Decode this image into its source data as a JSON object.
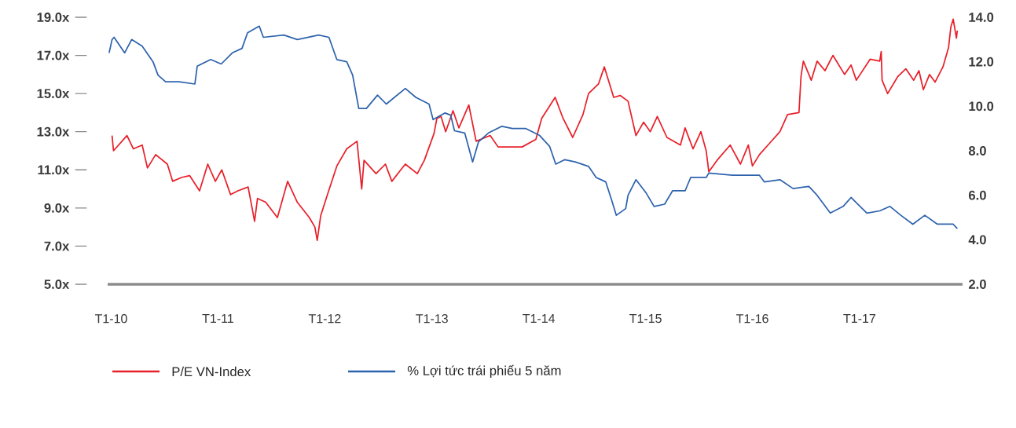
{
  "chart_data": {
    "type": "line",
    "xlim": [
      "2009-12-20",
      "2017-12-19"
    ],
    "xticks": [
      {
        "value": "2010-01-01",
        "label": "T1-10"
      },
      {
        "value": "2011-01-01",
        "label": "T1-11"
      },
      {
        "value": "2012-01-01",
        "label": "T1-12"
      },
      {
        "value": "2013-01-01",
        "label": "T1-13"
      },
      {
        "value": "2014-01-01",
        "label": "T1-14"
      },
      {
        "value": "2015-01-01",
        "label": "T1-15"
      },
      {
        "value": "2016-01-01",
        "label": "T1-16"
      },
      {
        "value": "2017-01-01",
        "label": "T1-17"
      }
    ],
    "ylim": [
      5,
      19
    ],
    "yticks": [
      {
        "value": 5,
        "label": "5.0x"
      },
      {
        "value": 7,
        "label": "7.0x"
      },
      {
        "value": 9,
        "label": "9.0x"
      },
      {
        "value": 11,
        "label": "11.0x"
      },
      {
        "value": 13,
        "label": "13.0x"
      },
      {
        "value": 15,
        "label": "15.0x"
      },
      {
        "value": 17,
        "label": "17.0x"
      },
      {
        "value": 19,
        "label": "19.0x"
      }
    ],
    "y2lim": [
      2,
      14
    ],
    "y2ticks": [
      {
        "value": 2,
        "label": "2.0"
      },
      {
        "value": 4,
        "label": "4.0"
      },
      {
        "value": 6,
        "label": "6.0"
      },
      {
        "value": 8,
        "label": "8.0"
      },
      {
        "value": 10,
        "label": "10.0"
      },
      {
        "value": 12,
        "label": "12.0"
      },
      {
        "value": 14,
        "label": "14.0"
      }
    ],
    "legend": "bottom",
    "series": [
      {
        "name": "P/E VN-Index",
        "color": "#e8202a",
        "x": [
          "2010-01-04",
          "2010-01-09",
          "2010-02-24",
          "2010-03-18",
          "2010-04-17",
          "2010-05-05",
          "2010-06-02",
          "2010-07-12",
          "2010-07-30",
          "2010-08-29",
          "2010-09-26",
          "2010-10-30",
          "2010-11-27",
          "2010-12-23",
          "2011-01-14",
          "2011-02-13",
          "2011-03-10",
          "2011-04-14",
          "2011-05-06",
          "2011-05-16",
          "2011-06-13",
          "2011-07-23",
          "2011-08-27",
          "2011-09-29",
          "2011-11-09",
          "2011-11-28",
          "2011-12-06",
          "2011-12-18",
          "2012-01-10",
          "2012-02-11",
          "2012-03-16",
          "2012-04-20",
          "2012-05-06",
          "2012-05-14",
          "2012-06-24",
          "2012-07-26",
          "2012-08-17",
          "2012-10-02",
          "2012-11-12",
          "2012-12-06",
          "2013-01-08",
          "2013-01-18",
          "2013-02-01",
          "2013-02-17",
          "2013-03-14",
          "2013-04-03",
          "2013-05-07",
          "2013-06-01",
          "2013-07-19",
          "2013-08-15",
          "2013-11-05",
          "2013-12-22",
          "2014-01-11",
          "2014-02-26",
          "2014-03-25",
          "2014-04-27",
          "2014-06-01",
          "2014-06-20",
          "2014-07-24",
          "2014-08-13",
          "2014-09-14",
          "2014-10-06",
          "2014-11-02",
          "2014-11-29",
          "2014-12-25",
          "2015-01-17",
          "2015-02-10",
          "2015-03-15",
          "2015-04-30",
          "2015-05-16",
          "2015-06-12",
          "2015-07-09",
          "2015-07-27",
          "2015-08-05",
          "2015-09-02",
          "2015-10-17",
          "2015-11-21",
          "2015-12-18",
          "2016-01-01",
          "2016-01-25",
          "2016-02-29",
          "2016-04-04",
          "2016-04-30",
          "2016-06-08",
          "2016-06-15",
          "2016-06-23",
          "2016-07-20",
          "2016-08-09",
          "2016-09-05",
          "2016-10-02",
          "2016-11-11",
          "2016-12-03",
          "2016-12-21",
          "2017-02-06",
          "2017-03-11",
          "2017-03-16",
          "2017-03-19",
          "2017-04-07",
          "2017-05-12",
          "2017-06-08",
          "2017-07-05",
          "2017-07-23",
          "2017-08-07",
          "2017-08-28",
          "2017-09-16",
          "2017-10-13",
          "2017-11-01",
          "2017-11-09",
          "2017-11-17",
          "2017-11-28",
          "2017-12-01"
        ],
        "values": [
          12.8,
          12.0,
          12.8,
          12.1,
          12.3,
          11.1,
          11.8,
          11.3,
          10.4,
          10.6,
          10.7,
          9.9,
          11.3,
          10.4,
          11.0,
          9.7,
          9.9,
          10.1,
          8.3,
          9.5,
          9.3,
          8.5,
          10.4,
          9.3,
          8.5,
          8.0,
          7.3,
          8.6,
          9.7,
          11.2,
          12.1,
          12.5,
          10.0,
          11.5,
          10.8,
          11.3,
          10.4,
          11.3,
          10.8,
          11.5,
          12.9,
          13.7,
          13.8,
          13.0,
          14.1,
          13.2,
          14.4,
          12.5,
          12.8,
          12.2,
          12.2,
          12.6,
          13.7,
          14.8,
          13.7,
          12.7,
          13.9,
          15.0,
          15.5,
          16.4,
          14.8,
          14.9,
          14.6,
          12.8,
          13.5,
          13.0,
          13.8,
          12.7,
          12.3,
          13.2,
          12.1,
          13.0,
          12.0,
          10.9,
          11.5,
          12.3,
          11.3,
          12.3,
          11.2,
          11.8,
          12.4,
          13.0,
          13.9,
          14.0,
          15.9,
          16.7,
          15.7,
          16.7,
          16.2,
          17.0,
          16.0,
          16.5,
          15.7,
          16.8,
          16.7,
          17.2,
          15.7,
          15.0,
          15.9,
          16.3,
          15.7,
          16.2,
          15.2,
          16.0,
          15.6,
          16.4,
          17.4,
          18.5,
          18.9,
          17.9,
          18.3
        ]
      },
      {
        "name": "% Lợi tức trái phiếu 5 năm",
        "color": "#2e63ad",
        "axis": "y2",
        "x": [
          "2009-12-25",
          "2010-01-04",
          "2010-01-11",
          "2010-02-16",
          "2010-03-12",
          "2010-04-17",
          "2010-05-24",
          "2010-06-10",
          "2010-07-06",
          "2010-08-21",
          "2010-10-14",
          "2010-10-22",
          "2010-12-07",
          "2011-01-12",
          "2011-02-19",
          "2011-03-24",
          "2011-04-12",
          "2011-05-22",
          "2011-06-05",
          "2011-08-14",
          "2011-09-29",
          "2011-12-11",
          "2012-01-15",
          "2012-02-11",
          "2012-03-16",
          "2012-04-05",
          "2012-04-26",
          "2012-05-22",
          "2012-06-29",
          "2012-07-29",
          "2012-10-02",
          "2012-11-07",
          "2012-12-22",
          "2013-01-05",
          "2013-02-15",
          "2013-03-06",
          "2013-03-19",
          "2013-04-23",
          "2013-05-20",
          "2013-06-09",
          "2013-07-13",
          "2013-08-28",
          "2013-10-03",
          "2013-11-18",
          "2014-01-03",
          "2014-02-07",
          "2014-02-28",
          "2014-03-31",
          "2014-05-05",
          "2014-06-20",
          "2014-07-16",
          "2014-08-18",
          "2014-09-09",
          "2014-09-23",
          "2014-10-25",
          "2014-11-02",
          "2014-11-29",
          "2015-01-03",
          "2015-01-30",
          "2015-03-07",
          "2015-04-03",
          "2015-05-16",
          "2015-06-04",
          "2015-07-27",
          "2015-08-05",
          "2015-10-25",
          "2016-01-25",
          "2016-02-11",
          "2016-04-04",
          "2016-05-19",
          "2016-07-12",
          "2016-08-09",
          "2016-09-23",
          "2016-11-06",
          "2016-12-03",
          "2017-01-26",
          "2017-03-11",
          "2017-04-15",
          "2017-05-22",
          "2017-07-02",
          "2017-08-12",
          "2017-09-24",
          "2017-11-17",
          "2017-12-01"
        ],
        "values": [
          12.4,
          13.0,
          13.1,
          12.4,
          13.0,
          12.7,
          12.0,
          11.4,
          11.1,
          11.1,
          11.0,
          11.8,
          12.1,
          11.9,
          12.4,
          12.6,
          13.3,
          13.6,
          13.1,
          13.2,
          13.0,
          13.2,
          13.1,
          12.1,
          12.0,
          11.4,
          9.9,
          9.9,
          10.5,
          10.1,
          10.8,
          10.4,
          10.1,
          9.4,
          9.7,
          9.6,
          8.9,
          8.8,
          7.5,
          8.4,
          8.8,
          9.1,
          9.0,
          9.0,
          8.7,
          8.2,
          7.4,
          7.6,
          7.5,
          7.3,
          6.8,
          6.6,
          5.7,
          5.1,
          5.4,
          6.0,
          6.7,
          6.1,
          5.5,
          5.6,
          6.2,
          6.2,
          6.8,
          6.8,
          7.0,
          6.9,
          6.9,
          6.6,
          6.7,
          6.3,
          6.4,
          6.0,
          5.2,
          5.5,
          5.9,
          5.2,
          5.3,
          5.5,
          5.1,
          4.7,
          5.1,
          4.7,
          4.7,
          4.5
        ]
      }
    ]
  }
}
